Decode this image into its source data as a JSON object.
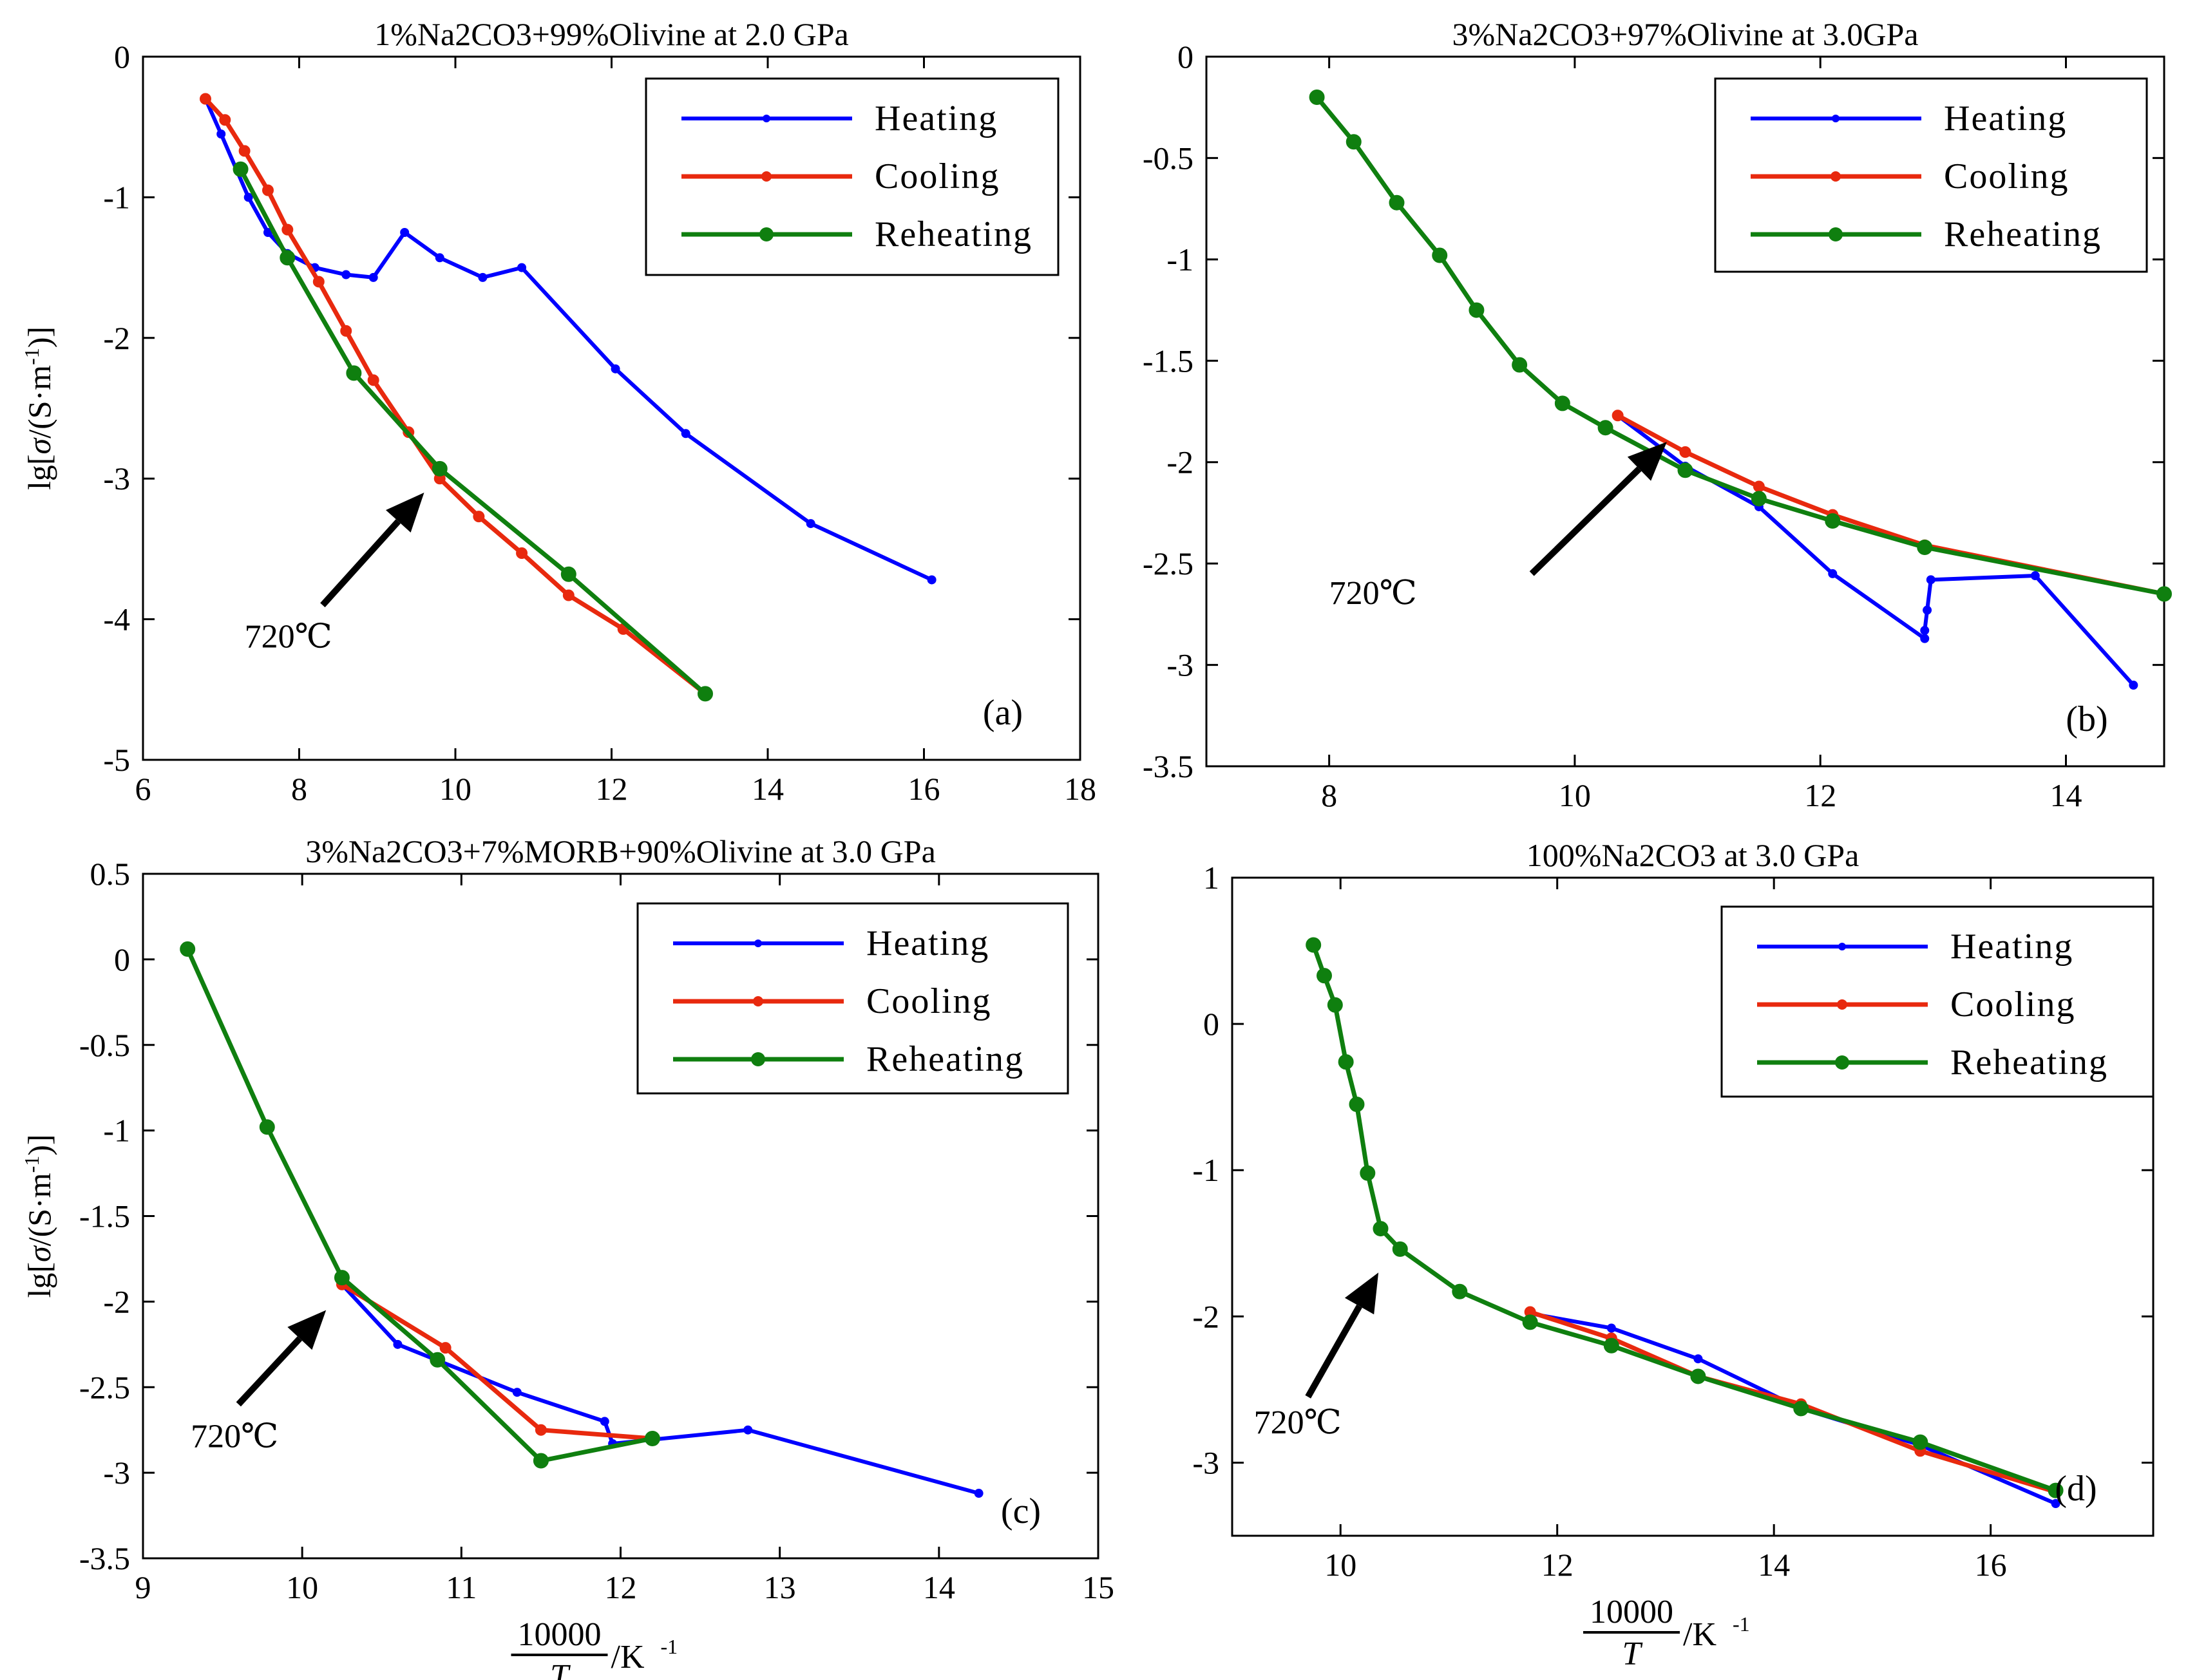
{
  "colors": {
    "heating": "#0000ff",
    "cooling": "#e8290e",
    "reheating": "#0f7f0f"
  },
  "axis_labels": {
    "ylabel_prefix": "lg[",
    "ylabel_sigma": "σ",
    "ylabel_mid": "/(S·m",
    "ylabel_exp": "-1",
    "ylabel_suffix": ")]",
    "xlabel_num": "10000",
    "xlabel_den": "T",
    "xlabel_unit": "/K",
    "xlabel_exp": "-1"
  },
  "chart_data": [
    {
      "type": "line",
      "title": "1%Na2CO3+99%Olivine at 2.0 GPa",
      "panel_label": "(a)",
      "xlim": [
        6,
        18
      ],
      "ylim": [
        -5,
        0
      ],
      "xticks": [
        6,
        8,
        10,
        12,
        14,
        16,
        18
      ],
      "yticks": [
        -5,
        -4,
        -3,
        -2,
        -1,
        0
      ],
      "show_xlabel": false,
      "show_ylabel": true,
      "legend": [
        "Heating",
        "Cooling",
        "Reheating"
      ],
      "annotation": {
        "text": "720℃",
        "arrow_from": [
          8.3,
          -3.9
        ],
        "arrow_to": [
          9.6,
          -3.1
        ],
        "text_at": [
          7.3,
          -4.2
        ]
      },
      "series": [
        {
          "name": "Heating",
          "x": [
            6.8,
            7.0,
            7.35,
            7.6,
            7.85,
            8.2,
            8.6,
            8.95,
            9.35,
            9.8,
            10.35,
            10.85,
            12.05,
            12.95,
            14.55,
            16.1
          ],
          "y": [
            -0.3,
            -0.55,
            -1.0,
            -1.25,
            -1.4,
            -1.5,
            -1.55,
            -1.57,
            -1.25,
            -1.43,
            -1.57,
            -1.5,
            -2.22,
            -2.68,
            -3.32,
            -3.72
          ]
        },
        {
          "name": "Cooling",
          "x": [
            6.8,
            7.05,
            7.3,
            7.6,
            7.85,
            8.25,
            8.6,
            8.95,
            9.4,
            9.8,
            10.3,
            10.85,
            11.45,
            12.15,
            13.2
          ],
          "y": [
            -0.3,
            -0.45,
            -0.67,
            -0.95,
            -1.23,
            -1.6,
            -1.95,
            -2.3,
            -2.67,
            -3.0,
            -3.27,
            -3.53,
            -3.83,
            -4.07,
            -4.53
          ]
        },
        {
          "name": "Reheating",
          "x": [
            7.25,
            7.85,
            8.7,
            9.8,
            11.45,
            13.2
          ],
          "y": [
            -0.8,
            -1.43,
            -2.25,
            -2.93,
            -3.68,
            -4.53
          ]
        }
      ]
    },
    {
      "type": "line",
      "title": "3%Na2CO3+97%Olivine at 3.0GPa",
      "panel_label": "(b)",
      "xlim": [
        7,
        14.8
      ],
      "ylim": [
        -3.5,
        0
      ],
      "xticks": [
        8,
        10,
        12,
        14
      ],
      "yticks": [
        -3.5,
        -3,
        -2.5,
        -2,
        -1.5,
        -1,
        -0.5,
        0
      ],
      "show_xlabel": false,
      "show_ylabel": false,
      "legend": [
        "Heating",
        "Cooling",
        "Reheating"
      ],
      "annotation": {
        "text": "720℃",
        "arrow_from": [
          9.65,
          -2.55
        ],
        "arrow_to": [
          10.75,
          -1.9
        ],
        "text_at": [
          8.0,
          -2.7
        ]
      },
      "series": [
        {
          "name": "Heating",
          "x": [
            10.35,
            10.9,
            11.5,
            12.1,
            12.85,
            12.85,
            12.87,
            12.9,
            13.75,
            14.55
          ],
          "y": [
            -1.77,
            -2.02,
            -2.22,
            -2.55,
            -2.87,
            -2.83,
            -2.73,
            -2.58,
            -2.56,
            -3.1
          ]
        },
        {
          "name": "Cooling",
          "x": [
            10.35,
            10.9,
            11.5,
            12.1,
            12.85,
            14.8
          ],
          "y": [
            -1.77,
            -1.95,
            -2.12,
            -2.26,
            -2.41,
            -2.65
          ]
        },
        {
          "name": "Reheating",
          "x": [
            7.9,
            8.2,
            8.55,
            8.9,
            9.2,
            9.55,
            9.9,
            10.25,
            10.9,
            11.5,
            12.1,
            12.85,
            14.8
          ],
          "y": [
            -0.2,
            -0.42,
            -0.72,
            -0.98,
            -1.25,
            -1.52,
            -1.71,
            -1.83,
            -2.04,
            -2.18,
            -2.29,
            -2.42,
            -2.65
          ]
        }
      ]
    },
    {
      "type": "line",
      "title": "3%Na2CO3+7%MORB+90%Olivine at 3.0 GPa",
      "panel_label": "(c)",
      "xlim": [
        9,
        15
      ],
      "ylim": [
        -3.5,
        0.5
      ],
      "xticks": [
        9,
        10,
        11,
        12,
        13,
        14,
        15
      ],
      "yticks": [
        -3.5,
        -3,
        -2.5,
        -2,
        -1.5,
        -1,
        -0.5,
        0,
        0.5
      ],
      "show_xlabel": true,
      "show_ylabel": true,
      "legend": [
        "Heating",
        "Cooling",
        "Reheating"
      ],
      "annotation": {
        "text": "720℃",
        "arrow_from": [
          9.6,
          -2.6
        ],
        "arrow_to": [
          10.15,
          -2.05
        ],
        "text_at": [
          9.3,
          -2.85
        ]
      },
      "series": [
        {
          "name": "Heating",
          "x": [
            10.25,
            10.6,
            11.35,
            11.9,
            11.95,
            12.8,
            14.25
          ],
          "y": [
            -1.9,
            -2.25,
            -2.53,
            -2.7,
            -2.83,
            -2.75,
            -3.12
          ]
        },
        {
          "name": "Cooling",
          "x": [
            10.25,
            10.9,
            11.5,
            12.2
          ],
          "y": [
            -1.9,
            -2.27,
            -2.75,
            -2.8
          ]
        },
        {
          "name": "Reheating",
          "x": [
            9.28,
            9.78,
            10.25,
            10.85,
            11.5,
            12.2
          ],
          "y": [
            0.06,
            -0.98,
            -1.86,
            -2.34,
            -2.93,
            -2.8
          ]
        }
      ]
    },
    {
      "type": "line",
      "title": "100%Na2CO3 at 3.0 GPa",
      "panel_label": "(d)",
      "xlim": [
        9,
        17.5
      ],
      "ylim": [
        -3.5,
        1
      ],
      "xticks": [
        10,
        12,
        14,
        16
      ],
      "yticks": [
        -3,
        -2,
        -1,
        0,
        1
      ],
      "show_xlabel": true,
      "show_ylabel": false,
      "legend": [
        "Heating",
        "Cooling",
        "Reheating"
      ],
      "annotation": {
        "text": "720℃",
        "arrow_from": [
          9.7,
          -2.55
        ],
        "arrow_to": [
          10.35,
          -1.7
        ],
        "text_at": [
          9.2,
          -2.8
        ]
      },
      "series": [
        {
          "name": "Heating",
          "x": [
            11.75,
            12.5,
            13.3,
            14.25,
            15.35,
            16.6
          ],
          "y": [
            -1.98,
            -2.08,
            -2.29,
            -2.63,
            -2.88,
            -3.28
          ]
        },
        {
          "name": "Cooling",
          "x": [
            11.75,
            12.5,
            13.3,
            14.25,
            15.35,
            16.6
          ],
          "y": [
            -1.97,
            -2.15,
            -2.41,
            -2.6,
            -2.92,
            -3.2
          ]
        },
        {
          "name": "Reheating",
          "x": [
            9.75,
            9.85,
            9.95,
            10.05,
            10.15,
            10.25,
            10.37,
            10.55,
            11.1,
            11.75,
            12.5,
            13.3,
            14.25,
            15.35,
            16.6
          ],
          "y": [
            0.54,
            0.33,
            0.13,
            -0.26,
            -0.55,
            -1.02,
            -1.4,
            -1.54,
            -1.83,
            -2.04,
            -2.2,
            -2.41,
            -2.63,
            -2.86,
            -3.19
          ]
        }
      ]
    }
  ]
}
